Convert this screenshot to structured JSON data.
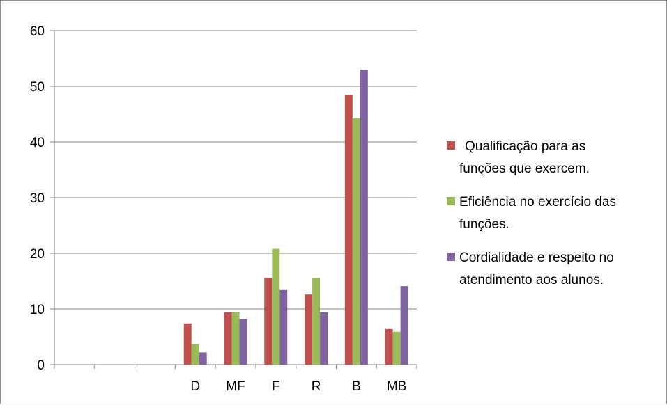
{
  "chart_data": {
    "type": "bar",
    "title": "",
    "xlabel": "",
    "ylabel": "",
    "ylim": [
      0,
      60
    ],
    "yticks": [
      0,
      10,
      20,
      30,
      40,
      50,
      60
    ],
    "grid": true,
    "legend_position": "right",
    "categories": [
      "",
      "",
      "",
      "D",
      "MF",
      "F",
      "R",
      "B",
      "MB"
    ],
    "series": [
      {
        "name": "Qualificação para as funções que exercem.",
        "legend_lines": [
          "Qualificação para as",
          "funções que exercem."
        ],
        "color": "#c0504d",
        "values": [
          null,
          null,
          null,
          7.4,
          9.4,
          15.6,
          12.6,
          48.5,
          6.4
        ]
      },
      {
        "name": "Eficiência no exercício das funções.",
        "legend_lines": [
          "Eficiência no exercício das",
          "funções."
        ],
        "color": "#9bbb59",
        "values": [
          null,
          null,
          null,
          3.7,
          9.4,
          20.8,
          15.6,
          44.3,
          5.9
        ]
      },
      {
        "name": "Cordialidade e respeito no atendimento aos alunos.",
        "legend_lines": [
          "Cordialidade e respeito no",
          "atendimento aos alunos."
        ],
        "color": "#8064a2",
        "values": [
          null,
          null,
          null,
          2.2,
          8.2,
          13.4,
          9.4,
          53.0,
          14.1
        ]
      }
    ]
  }
}
